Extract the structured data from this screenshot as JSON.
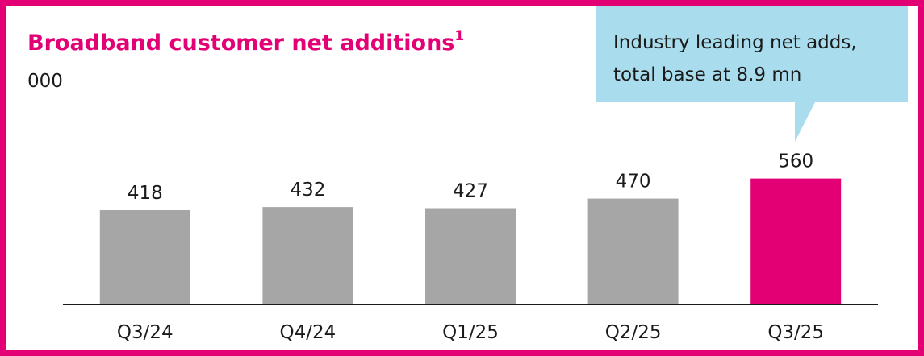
{
  "chart_data": {
    "type": "bar",
    "title": "Broadband customer net additions",
    "title_footnote": "1",
    "subtitle": "000",
    "callout": [
      "Industry leading net adds,",
      "total base at 8.9 mn"
    ],
    "categories": [
      "Q3/24",
      "Q4/24",
      "Q1/25",
      "Q2/25",
      "Q3/25"
    ],
    "values": [
      418,
      432,
      427,
      470,
      560
    ],
    "colors": [
      "#a6a6a6",
      "#a6a6a6",
      "#a6a6a6",
      "#a6a6a6",
      "#e20074"
    ]
  }
}
